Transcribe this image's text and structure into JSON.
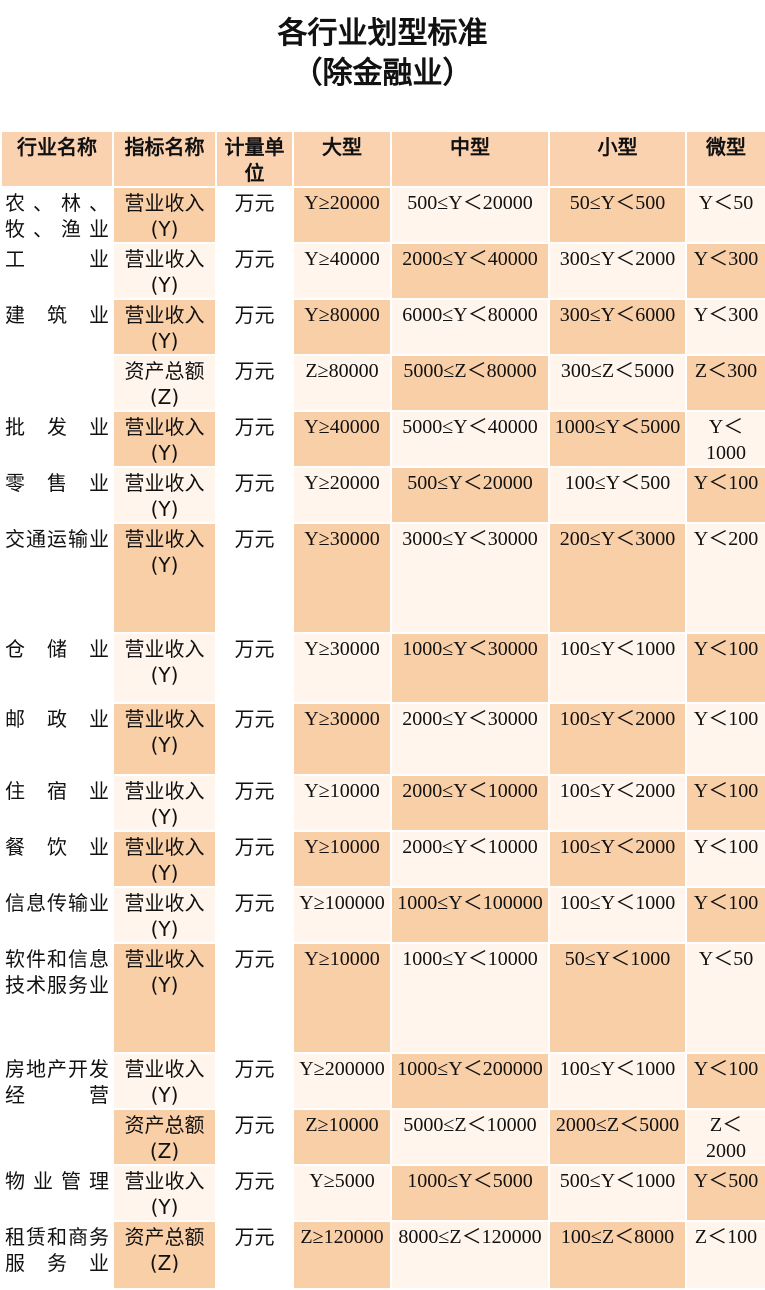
{
  "header": {
    "title": "各行业划型标准",
    "subtitle": "（除金融业）"
  },
  "table": {
    "columns": [
      "行业名称",
      "指标名称",
      "计量单位",
      "大型",
      "中型",
      "小型",
      "微型"
    ],
    "rows": [
      [
        "农、林、牧、渔业",
        "营业收入(Y)",
        "万元",
        "Y≥20000",
        "500≤Y＜20000",
        "50≤Y＜500",
        "Y＜50"
      ],
      [
        "工业",
        "营业收入(Y)",
        "万元",
        "Y≥40000",
        "2000≤Y＜40000",
        "300≤Y＜2000",
        "Y＜300"
      ],
      [
        "建筑业",
        "营业收入(Y)",
        "万元",
        "Y≥80000",
        "6000≤Y＜80000",
        "300≤Y＜6000",
        "Y＜300"
      ],
      [
        null,
        "资产总额(Z)",
        "万元",
        "Z≥80000",
        "5000≤Z＜80000",
        "300≤Z＜5000",
        "Z＜300"
      ],
      [
        "批发业",
        "营业收入(Y)",
        "万元",
        "Y≥40000",
        "5000≤Y＜40000",
        "1000≤Y＜5000",
        "Y＜1000"
      ],
      [
        "零售业",
        "营业收入(Y)",
        "万元",
        "Y≥20000",
        "500≤Y＜20000",
        "100≤Y＜500",
        "Y＜100"
      ],
      [
        "交通运输业",
        "营业收入(Y)",
        "万元",
        "Y≥30000",
        "3000≤Y＜30000",
        "200≤Y＜3000",
        "Y＜200"
      ],
      [
        "仓储业",
        "营业收入(Y)",
        "万元",
        "Y≥30000",
        "1000≤Y＜30000",
        "100≤Y＜1000",
        "Y＜100"
      ],
      [
        "邮政业",
        "营业收入(Y)",
        "万元",
        "Y≥30000",
        "2000≤Y＜30000",
        "100≤Y＜2000",
        "Y＜100"
      ],
      [
        "住宿业",
        "营业收入(Y)",
        "万元",
        "Y≥10000",
        "2000≤Y＜10000",
        "100≤Y＜2000",
        "Y＜100"
      ],
      [
        "餐饮业",
        "营业收入(Y)",
        "万元",
        "Y≥10000",
        "2000≤Y＜10000",
        "100≤Y＜2000",
        "Y＜100"
      ],
      [
        "信息传输业",
        "营业收入(Y)",
        "万元",
        "Y≥100000",
        "1000≤Y＜100000",
        "100≤Y＜1000",
        "Y＜100"
      ],
      [
        "软件和信息技术服务业",
        "营业收入(Y)",
        "万元",
        "Y≥10000",
        "1000≤Y＜10000",
        "50≤Y＜1000",
        "Y＜50"
      ],
      [
        "房地产开发经营",
        "营业收入(Y)",
        "万元",
        "Y≥200000",
        "1000≤Y＜200000",
        "100≤Y＜1000",
        "Y＜100"
      ],
      [
        null,
        "资产总额(Z)",
        "万元",
        "Z≥10000",
        "5000≤Z＜10000",
        "2000≤Z＜5000",
        "Z＜2000"
      ],
      [
        "物业管理",
        "营业收入(Y)",
        "万元",
        "Y≥5000",
        "1000≤Y＜5000",
        "500≤Y＜1000",
        "Y＜500"
      ],
      [
        "租赁和商务服务业",
        "资产总额(Z)",
        "万元",
        "Z≥120000",
        "8000≤Z＜120000",
        "100≤Z＜8000",
        "Z＜100"
      ]
    ]
  }
}
